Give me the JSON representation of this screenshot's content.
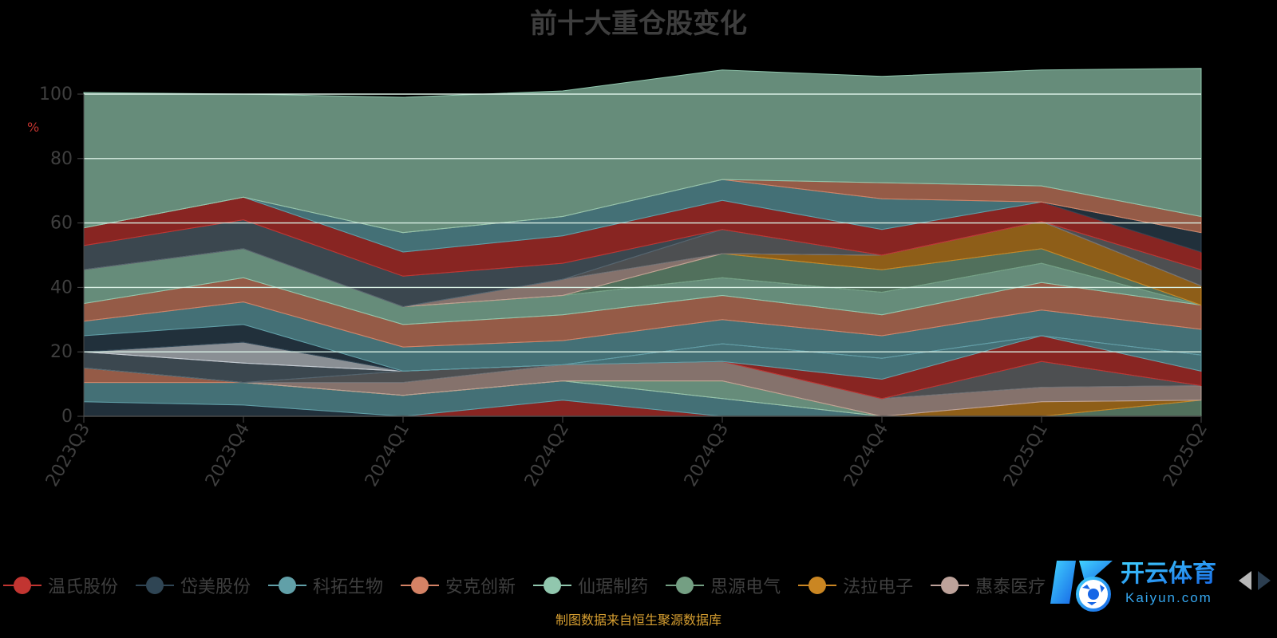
{
  "chart_data": {
    "type": "area",
    "stacked": true,
    "title": "前十大重仓股变化",
    "ylabel": "%",
    "ylim": [
      0,
      100
    ],
    "yticks": [
      0,
      20,
      40,
      60,
      80,
      100
    ],
    "grid": true,
    "legend_position": "bottom",
    "categories": [
      "2023Q3",
      "2023Q4",
      "2024Q1",
      "2024Q2",
      "2024Q3",
      "2024Q4",
      "2025Q1",
      "2025Q2"
    ],
    "series": [
      {
        "values": [
          0,
          0,
          0,
          5,
          0,
          0,
          0,
          0
        ],
        "color": "#c23531"
      },
      {
        "values": [
          4.5,
          3.5,
          0,
          0,
          0,
          0,
          0,
          0
        ],
        "color": "#2f4554"
      },
      {
        "values": [
          6,
          7,
          6.5,
          6,
          5.5,
          0,
          0,
          0
        ],
        "color": "#61a0a8"
      },
      {
        "values": [
          4.5,
          0,
          0,
          0,
          0,
          0,
          0,
          0
        ],
        "color": "#d48265"
      },
      {
        "values": [
          0,
          0,
          0,
          0,
          5.5,
          0,
          0,
          0
        ],
        "color": "#91c7ae"
      },
      {
        "values": [
          0,
          0,
          0,
          0,
          0,
          0,
          0,
          5
        ],
        "color": "#749f83"
      },
      {
        "values": [
          0,
          0,
          0,
          0,
          0,
          0,
          4.5,
          0
        ],
        "color": "#ca8622"
      },
      {
        "values": [
          0,
          0,
          4,
          5,
          6,
          5.5,
          4.5,
          4.5
        ],
        "color": "#bda29a"
      },
      {
        "values": [
          0,
          0,
          3.5,
          0,
          0,
          0,
          8,
          0
        ],
        "color": "#6e7074"
      },
      {
        "values": [
          5,
          6,
          0,
          0,
          0,
          0,
          0,
          0
        ],
        "color": "#546570"
      },
      {
        "values": [
          0,
          0,
          0,
          0,
          0,
          6,
          8,
          4.5
        ],
        "color": "#c23531"
      },
      {
        "values": [
          0,
          0,
          0,
          0,
          5.5,
          6.5,
          0,
          5
        ],
        "color": "#61a0a8"
      },
      {
        "values": [
          0,
          6.5,
          0,
          0,
          0,
          0,
          0,
          0
        ],
        "color": "#c4ccd3"
      },
      {
        "values": [
          5,
          5.5,
          0,
          0,
          0,
          0,
          0,
          0
        ],
        "color": "#2f4554"
      },
      {
        "values": [
          4.5,
          7,
          7.5,
          7.5,
          7.5,
          7,
          8,
          8
        ],
        "color": "#61a0a8"
      },
      {
        "values": [
          5.5,
          7.5,
          7,
          8,
          7.5,
          6.5,
          8.5,
          7.5
        ],
        "color": "#d48265"
      },
      {
        "values": [
          10.5,
          9,
          5.5,
          6,
          5.5,
          7,
          6,
          0
        ],
        "color": "#91c7ae"
      },
      {
        "values": [
          0,
          0,
          0,
          0,
          7.5,
          7,
          4.5,
          0
        ],
        "color": "#749f83"
      },
      {
        "values": [
          0,
          0,
          0,
          0,
          0,
          4.5,
          8.5,
          6
        ],
        "color": "#ca8622"
      },
      {
        "values": [
          0,
          0,
          0,
          5,
          0,
          0,
          0,
          0
        ],
        "color": "#bda29a"
      },
      {
        "values": [
          0,
          0,
          0,
          0,
          7.5,
          0,
          0,
          5
        ],
        "color": "#6e7074"
      },
      {
        "values": [
          7.5,
          9,
          9.5,
          5,
          0,
          0,
          0,
          0
        ],
        "color": "#546570"
      },
      {
        "values": [
          5.5,
          7,
          7.5,
          8.5,
          9,
          8,
          6,
          5.5
        ],
        "color": "#c23531"
      },
      {
        "values": [
          0,
          0,
          0,
          0,
          0,
          0,
          0,
          6
        ],
        "color": "#2f4554"
      },
      {
        "values": [
          0,
          0,
          6,
          6,
          6.5,
          9.5,
          0,
          0
        ],
        "color": "#61a0a8"
      },
      {
        "values": [
          0,
          0,
          0,
          0,
          0,
          5,
          5,
          5
        ],
        "color": "#d48265"
      },
      {
        "values": [
          42,
          32,
          42,
          39,
          34,
          33,
          36,
          46
        ],
        "color": "#91c7ae"
      }
    ]
  },
  "legend": {
    "items": [
      {
        "label": "温氏股份",
        "color": "#c23531"
      },
      {
        "label": "岱美股份",
        "color": "#2f4554"
      },
      {
        "label": "科拓生物",
        "color": "#61a0a8"
      },
      {
        "label": "安克创新",
        "color": "#d48265"
      },
      {
        "label": "仙琚制药",
        "color": "#91c7ae"
      },
      {
        "label": "思源电气",
        "color": "#749f83"
      },
      {
        "label": "法拉电子",
        "color": "#ca8622"
      },
      {
        "label": "惠泰医疗",
        "color": "#bda29a"
      }
    ]
  },
  "footer": {
    "text": "制图数据来自恒生聚源数据库"
  },
  "watermark": {
    "text": "开云体育",
    "subtext": "Kaiyun.com"
  }
}
